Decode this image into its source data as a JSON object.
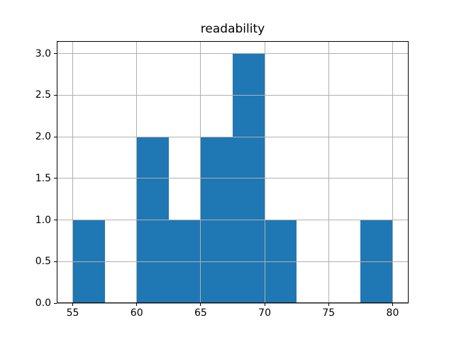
{
  "figure": {
    "title": "readability"
  },
  "colors": {
    "bar": "#1f77b4",
    "grid": "#b0b0b0",
    "spine": "#000000",
    "tick": "#000000",
    "background": "#ffffff",
    "text": "#000000"
  },
  "chart_data": {
    "type": "bar",
    "subtype": "histogram",
    "title": "readability",
    "xlabel": "",
    "ylabel": "",
    "bin_edges": [
      55,
      57.5,
      60,
      62.5,
      65,
      67.5,
      70,
      72.5,
      75,
      77.5,
      80
    ],
    "counts": [
      1,
      0,
      2,
      1,
      2,
      3,
      1,
      0,
      0,
      1
    ],
    "xlim": [
      53.75,
      81.25
    ],
    "ylim": [
      0,
      3.15
    ],
    "x_ticks": [
      55,
      60,
      65,
      70,
      75,
      80
    ],
    "x_tick_labels": [
      "55",
      "60",
      "65",
      "70",
      "75",
      "80"
    ],
    "y_ticks": [
      0.0,
      0.5,
      1.0,
      1.5,
      2.0,
      2.5,
      3.0
    ],
    "y_tick_labels": [
      "0.0",
      "0.5",
      "1.0",
      "1.5",
      "2.0",
      "2.5",
      "3.0"
    ],
    "grid": true,
    "grid_on_top": true,
    "legend": null
  }
}
